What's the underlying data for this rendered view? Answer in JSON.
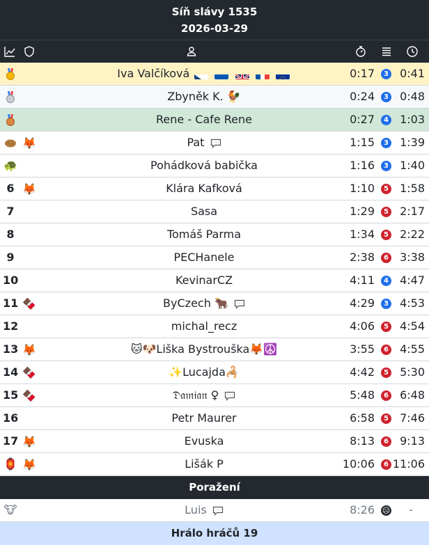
{
  "header": {
    "title": "Síň slávy 1535",
    "date": "2026-03-29"
  },
  "columns": {
    "chart_icon": "chart-line-icon",
    "shield_icon": "shield-icon",
    "player_icon": "person-icon",
    "time_icon": "stopwatch-icon",
    "moves_icon": "list-icon",
    "total_icon": "clock-icon"
  },
  "colors": {
    "gold_row": "#fff3c4",
    "silver_row": "#f6f8fa",
    "bronze_row": "#d1e8d8",
    "blue_badge": "#1f6feb",
    "red_badge": "#cf222e",
    "footer": "#cfe2ff"
  },
  "rows": [
    {
      "rank": "",
      "badge": "medal-gold",
      "name": "Iva Valčíková",
      "time": "0:17",
      "count": "3",
      "total": "0:41"
    },
    {
      "rank": "",
      "badge": "medal-silver",
      "name": "Zbyněk K.",
      "time": "0:24",
      "count": "3",
      "total": "0:48"
    },
    {
      "rank": "",
      "badge": "medal-bronze",
      "name": "Rene - Cafe Rene",
      "time": "0:27",
      "count": "4",
      "total": "1:03"
    },
    {
      "rank": "",
      "badge": "potato-icon",
      "name": "Pat",
      "time": "1:15",
      "count": "3",
      "total": "1:39"
    },
    {
      "rank": "",
      "badge": "turtle-icon",
      "name": "Pohádková babička",
      "time": "1:16",
      "count": "3",
      "total": "1:40"
    },
    {
      "rank": "6",
      "badge": "",
      "name": "Klára Kafková",
      "time": "1:10",
      "count": "5",
      "total": "1:58"
    },
    {
      "rank": "7",
      "badge": "",
      "name": "Sasa",
      "time": "1:29",
      "count": "5",
      "total": "2:17"
    },
    {
      "rank": "8",
      "badge": "",
      "name": "Tomáš Parma",
      "time": "1:34",
      "count": "5",
      "total": "2:22"
    },
    {
      "rank": "9",
      "badge": "",
      "name": "PECHanele",
      "time": "2:38",
      "count": "6",
      "total": "3:38"
    },
    {
      "rank": "10",
      "badge": "",
      "name": "KevinarCZ",
      "time": "4:11",
      "count": "4",
      "total": "4:47"
    },
    {
      "rank": "11",
      "badge": "",
      "name": "ByCzech",
      "time": "4:29",
      "count": "3",
      "total": "4:53"
    },
    {
      "rank": "12",
      "badge": "",
      "name": "michal_recz",
      "time": "4:06",
      "count": "5",
      "total": "4:54"
    },
    {
      "rank": "13",
      "badge": "",
      "name": "🐱🐶Liška Bystrouška🦊☮️",
      "time": "3:55",
      "count": "6",
      "total": "4:55"
    },
    {
      "rank": "14",
      "badge": "",
      "name": "✨Lucajda🦂",
      "time": "4:42",
      "count": "5",
      "total": "5:30"
    },
    {
      "rank": "15",
      "badge": "",
      "name": "𝔇𝔞𝔪𝔦𝔞𝔫 ♀",
      "time": "5:48",
      "count": "6",
      "total": "6:48"
    },
    {
      "rank": "16",
      "badge": "",
      "name": "Petr Maurer",
      "time": "6:58",
      "count": "5",
      "total": "7:46"
    },
    {
      "rank": "17",
      "badge": "",
      "name": "Evuska",
      "time": "8:13",
      "count": "6",
      "total": "9:13"
    },
    {
      "rank": "",
      "badge": "",
      "name": "Lišák P",
      "time": "10:06",
      "count": "6",
      "total": "11:06"
    }
  ],
  "lost_section": {
    "title": "Poražení"
  },
  "lost_rows": [
    {
      "name": "Luis",
      "time": "8:26",
      "total": "-"
    }
  ],
  "footer": {
    "text": "Hrálo hráčů 19"
  }
}
